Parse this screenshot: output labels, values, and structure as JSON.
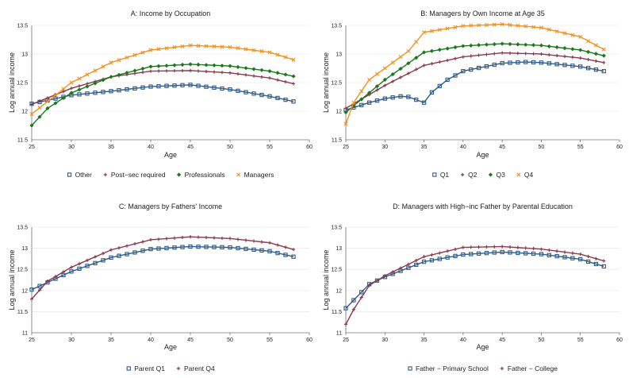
{
  "chart_data": [
    {
      "type": "line",
      "title": "A: Income by Occupation",
      "xlabel": "Age",
      "ylabel": "Log annual income",
      "xlim": [
        25,
        60
      ],
      "ylim": [
        11.5,
        13.5
      ],
      "xticks": [
        25,
        30,
        35,
        40,
        45,
        50,
        55,
        60
      ],
      "yticks": [
        11.5,
        12,
        12.5,
        13,
        13.5
      ],
      "ytick_labels": [
        "11.5",
        "12",
        "12.5",
        "13",
        "13.5"
      ],
      "legend_position": "bottom",
      "series": [
        {
          "name": "Other",
          "color": "#2e5b8a",
          "marker": "square",
          "anchors": [
            [
              25,
              12.13
            ],
            [
              30,
              12.28
            ],
            [
              35,
              12.35
            ],
            [
              40,
              12.43
            ],
            [
              45,
              12.46
            ],
            [
              50,
              12.38
            ],
            [
              55,
              12.26
            ],
            [
              58,
              12.17
            ]
          ]
        },
        {
          "name": "Post−sec required",
          "color": "#8b3a4f",
          "marker": "plus",
          "anchors": [
            [
              25,
              12.12
            ],
            [
              30,
              12.4
            ],
            [
              35,
              12.6
            ],
            [
              40,
              12.7
            ],
            [
              45,
              12.71
            ],
            [
              50,
              12.67
            ],
            [
              55,
              12.58
            ],
            [
              58,
              12.48
            ]
          ]
        },
        {
          "name": "Professionals",
          "color": "#1a7a1a",
          "marker": "diamond",
          "anchors": [
            [
              25,
              11.75
            ],
            [
              27,
              12.05
            ],
            [
              30,
              12.32
            ],
            [
              35,
              12.6
            ],
            [
              40,
              12.78
            ],
            [
              45,
              12.82
            ],
            [
              50,
              12.79
            ],
            [
              55,
              12.7
            ],
            [
              58,
              12.61
            ]
          ]
        },
        {
          "name": "Managers",
          "color": "#f5911e",
          "marker": "x",
          "anchors": [
            [
              25,
              11.95
            ],
            [
              30,
              12.5
            ],
            [
              35,
              12.85
            ],
            [
              40,
              13.07
            ],
            [
              45,
              13.15
            ],
            [
              50,
              13.12
            ],
            [
              55,
              13.03
            ],
            [
              58,
              12.9
            ]
          ]
        }
      ]
    },
    {
      "type": "line",
      "title": "B: Managers by Own Income at Age 35",
      "xlabel": "Age",
      "ylabel": "Log annual income",
      "xlim": [
        25,
        60
      ],
      "ylim": [
        11.5,
        13.5
      ],
      "xticks": [
        25,
        30,
        35,
        40,
        45,
        50,
        55,
        60
      ],
      "yticks": [
        11.5,
        12,
        12.5,
        13,
        13.5
      ],
      "ytick_labels": [
        "11.5",
        "12",
        "12.5",
        "13",
        "13.5"
      ],
      "legend_position": "bottom",
      "series": [
        {
          "name": "Q1",
          "color": "#2e5b8a",
          "marker": "square",
          "anchors": [
            [
              25,
              12.02
            ],
            [
              28,
              12.15
            ],
            [
              30,
              12.22
            ],
            [
              32,
              12.26
            ],
            [
              33,
              12.25
            ],
            [
              34,
              12.2
            ],
            [
              35,
              12.15
            ],
            [
              36,
              12.33
            ],
            [
              38,
              12.55
            ],
            [
              40,
              12.7
            ],
            [
              45,
              12.84
            ],
            [
              48,
              12.86
            ],
            [
              50,
              12.85
            ],
            [
              55,
              12.78
            ],
            [
              58,
              12.7
            ]
          ]
        },
        {
          "name": "Q2",
          "color": "#8b3a4f",
          "marker": "plus",
          "anchors": [
            [
              25,
              12.05
            ],
            [
              30,
              12.45
            ],
            [
              35,
              12.8
            ],
            [
              40,
              12.95
            ],
            [
              45,
              13.02
            ],
            [
              50,
              13.0
            ],
            [
              55,
              12.93
            ],
            [
              58,
              12.85
            ]
          ]
        },
        {
          "name": "Q3",
          "color": "#1a7a1a",
          "marker": "diamond",
          "anchors": [
            [
              25,
              11.98
            ],
            [
              30,
              12.55
            ],
            [
              35,
              13.03
            ],
            [
              40,
              13.14
            ],
            [
              45,
              13.18
            ],
            [
              50,
              13.15
            ],
            [
              55,
              13.07
            ],
            [
              58,
              12.97
            ]
          ]
        },
        {
          "name": "Q4",
          "color": "#f5911e",
          "marker": "x",
          "anchors": [
            [
              25,
              11.78
            ],
            [
              26,
              12.15
            ],
            [
              28,
              12.55
            ],
            [
              30,
              12.75
            ],
            [
              33,
              13.05
            ],
            [
              35,
              13.38
            ],
            [
              40,
              13.49
            ],
            [
              45,
              13.52
            ],
            [
              50,
              13.46
            ],
            [
              55,
              13.3
            ],
            [
              58,
              13.08
            ]
          ]
        }
      ]
    },
    {
      "type": "line",
      "title": "C: Managers by Fathers' Income",
      "xlabel": "Age",
      "ylabel": "Log annual income",
      "xlim": [
        25,
        60
      ],
      "ylim": [
        11,
        13.5
      ],
      "xticks": [
        25,
        30,
        35,
        40,
        45,
        50,
        55,
        60
      ],
      "yticks": [
        11,
        11.5,
        12,
        12.5,
        13,
        13.5
      ],
      "ytick_labels": [
        "11",
        "11.5",
        "12",
        "12.5",
        "13",
        "13.5"
      ],
      "legend_position": "bottom",
      "series": [
        {
          "name": "Parent Q1",
          "color": "#2e5b8a",
          "marker": "square",
          "anchors": [
            [
              25,
              12.02
            ],
            [
              30,
              12.45
            ],
            [
              35,
              12.78
            ],
            [
              40,
              12.98
            ],
            [
              45,
              13.04
            ],
            [
              50,
              13.02
            ],
            [
              55,
              12.93
            ],
            [
              58,
              12.8
            ]
          ]
        },
        {
          "name": "Parent Q4",
          "color": "#8b3a4f",
          "marker": "plus",
          "anchors": [
            [
              25,
              11.8
            ],
            [
              27,
              12.22
            ],
            [
              30,
              12.55
            ],
            [
              35,
              12.96
            ],
            [
              40,
              13.2
            ],
            [
              45,
              13.27
            ],
            [
              50,
              13.23
            ],
            [
              55,
              13.13
            ],
            [
              58,
              12.97
            ]
          ]
        }
      ]
    },
    {
      "type": "line",
      "title": "D: Managers with High−inc Father by Parental Education",
      "xlabel": "Age",
      "ylabel": "Log annual income",
      "xlim": [
        25,
        60
      ],
      "ylim": [
        11,
        13.5
      ],
      "xticks": [
        25,
        30,
        35,
        40,
        45,
        50,
        55,
        60
      ],
      "yticks": [
        11,
        11.5,
        12,
        12.5,
        13,
        13.5
      ],
      "ytick_labels": [
        "11",
        "11.5",
        "12",
        "12.5",
        "13",
        "13.5"
      ],
      "legend_position": "bottom",
      "series": [
        {
          "name": "Father − Primary School",
          "color": "#2e5b8a",
          "marker": "square",
          "anchors": [
            [
              25,
              11.58
            ],
            [
              28,
              12.15
            ],
            [
              30,
              12.32
            ],
            [
              35,
              12.68
            ],
            [
              40,
              12.85
            ],
            [
              45,
              12.91
            ],
            [
              50,
              12.86
            ],
            [
              55,
              12.74
            ],
            [
              58,
              12.57
            ]
          ]
        },
        {
          "name": "Father − College",
          "color": "#8b3a4f",
          "marker": "plus",
          "anchors": [
            [
              25,
              11.2
            ],
            [
              26,
              11.55
            ],
            [
              28,
              12.12
            ],
            [
              30,
              12.35
            ],
            [
              35,
              12.8
            ],
            [
              40,
              13.02
            ],
            [
              45,
              13.04
            ],
            [
              50,
              12.98
            ],
            [
              55,
              12.86
            ],
            [
              58,
              12.7
            ]
          ]
        }
      ]
    }
  ]
}
